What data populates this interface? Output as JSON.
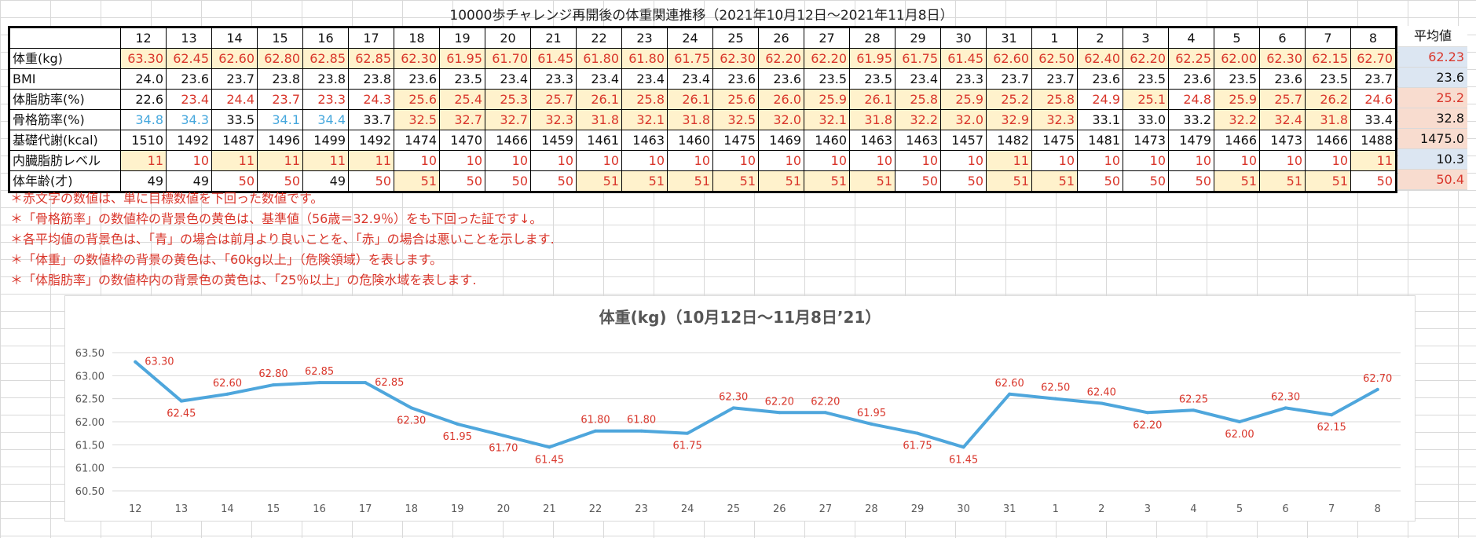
{
  "sheet": {
    "title": "10000歩チャレンジ再開後の体重関連推移（2021年10月12日～2021年11月8日）",
    "avg_header": "平均値",
    "days": [
      "12",
      "13",
      "14",
      "15",
      "16",
      "17",
      "18",
      "19",
      "20",
      "21",
      "22",
      "23",
      "24",
      "25",
      "26",
      "27",
      "28",
      "29",
      "30",
      "31",
      "1",
      "2",
      "3",
      "4",
      "5",
      "6",
      "7",
      "8"
    ],
    "colors": {
      "red_text": "#d9362b",
      "blue_text": "#45a7dd",
      "yellow_bg": "#fff2cc",
      "avg_blue_bg": "#dce6f2",
      "avg_red_bg": "#f8dccf",
      "line": "#4ea6dc"
    },
    "rows": [
      {
        "label": "体重(kg)",
        "values": [
          "63.30",
          "62.45",
          "62.60",
          "62.80",
          "62.85",
          "62.85",
          "62.30",
          "61.95",
          "61.70",
          "61.45",
          "61.80",
          "61.80",
          "61.75",
          "62.30",
          "62.20",
          "62.20",
          "61.95",
          "61.75",
          "61.45",
          "62.60",
          "62.50",
          "62.40",
          "62.20",
          "62.25",
          "62.00",
          "62.30",
          "62.15",
          "62.70"
        ],
        "text": [
          "r",
          "r",
          "r",
          "r",
          "r",
          "r",
          "r",
          "r",
          "r",
          "r",
          "r",
          "r",
          "r",
          "r",
          "r",
          "r",
          "r",
          "r",
          "r",
          "r",
          "r",
          "r",
          "r",
          "r",
          "r",
          "r",
          "r",
          "r"
        ],
        "bg": [
          "y",
          "y",
          "y",
          "y",
          "y",
          "y",
          "y",
          "y",
          "y",
          "y",
          "y",
          "y",
          "y",
          "y",
          "y",
          "y",
          "y",
          "y",
          "y",
          "y",
          "y",
          "y",
          "y",
          "y",
          "y",
          "y",
          "y",
          "y"
        ],
        "avg": "62.23",
        "avg_text": "r",
        "avg_bg": "b"
      },
      {
        "label": "BMI",
        "values": [
          "24.0",
          "23.6",
          "23.7",
          "23.8",
          "23.8",
          "23.8",
          "23.6",
          "23.5",
          "23.4",
          "23.3",
          "23.4",
          "23.4",
          "23.4",
          "23.6",
          "23.6",
          "23.5",
          "23.5",
          "23.4",
          "23.3",
          "23.7",
          "23.7",
          "23.6",
          "23.5",
          "23.6",
          "23.5",
          "23.6",
          "23.5",
          "23.7"
        ],
        "text": [
          "k",
          "k",
          "k",
          "k",
          "k",
          "k",
          "k",
          "k",
          "k",
          "k",
          "k",
          "k",
          "k",
          "k",
          "k",
          "k",
          "k",
          "k",
          "k",
          "k",
          "k",
          "k",
          "k",
          "k",
          "k",
          "k",
          "k",
          "k"
        ],
        "bg": [
          "w",
          "w",
          "w",
          "w",
          "w",
          "w",
          "w",
          "w",
          "w",
          "w",
          "w",
          "w",
          "w",
          "w",
          "w",
          "w",
          "w",
          "w",
          "w",
          "w",
          "w",
          "w",
          "w",
          "w",
          "w",
          "w",
          "w",
          "w"
        ],
        "avg": "23.6",
        "avg_text": "k",
        "avg_bg": "b"
      },
      {
        "label": "体脂肪率(%)",
        "values": [
          "22.6",
          "23.4",
          "24.4",
          "23.7",
          "23.3",
          "24.3",
          "25.6",
          "25.4",
          "25.3",
          "25.7",
          "26.1",
          "25.8",
          "26.1",
          "25.6",
          "26.0",
          "25.9",
          "26.1",
          "25.8",
          "25.9",
          "25.2",
          "25.8",
          "24.9",
          "25.1",
          "24.8",
          "25.9",
          "25.7",
          "26.2",
          "24.6"
        ],
        "text": [
          "k",
          "r",
          "r",
          "r",
          "r",
          "r",
          "r",
          "r",
          "r",
          "r",
          "r",
          "r",
          "r",
          "r",
          "r",
          "r",
          "r",
          "r",
          "r",
          "r",
          "r",
          "r",
          "r",
          "r",
          "r",
          "r",
          "r",
          "r"
        ],
        "bg": [
          "w",
          "w",
          "w",
          "w",
          "w",
          "w",
          "y",
          "y",
          "y",
          "y",
          "y",
          "y",
          "y",
          "y",
          "y",
          "y",
          "y",
          "y",
          "y",
          "y",
          "y",
          "w",
          "y",
          "w",
          "y",
          "y",
          "y",
          "w"
        ],
        "avg": "25.2",
        "avg_text": "r",
        "avg_bg": "p"
      },
      {
        "label": "骨格筋率(%)",
        "values": [
          "34.8",
          "34.3",
          "33.5",
          "34.1",
          "34.4",
          "33.7",
          "32.5",
          "32.7",
          "32.7",
          "32.3",
          "31.8",
          "32.1",
          "31.8",
          "32.5",
          "32.0",
          "32.1",
          "31.8",
          "32.2",
          "32.0",
          "32.9",
          "32.3",
          "33.1",
          "33.0",
          "33.2",
          "32.2",
          "32.4",
          "31.8",
          "33.4"
        ],
        "text": [
          "l",
          "l",
          "k",
          "l",
          "l",
          "k",
          "r",
          "r",
          "r",
          "r",
          "r",
          "r",
          "r",
          "r",
          "r",
          "r",
          "r",
          "r",
          "r",
          "r",
          "r",
          "k",
          "k",
          "k",
          "r",
          "r",
          "r",
          "k"
        ],
        "bg": [
          "w",
          "w",
          "w",
          "w",
          "w",
          "w",
          "y",
          "y",
          "y",
          "y",
          "y",
          "y",
          "y",
          "y",
          "y",
          "y",
          "y",
          "y",
          "y",
          "y",
          "y",
          "w",
          "w",
          "w",
          "y",
          "y",
          "y",
          "w"
        ],
        "avg": "32.8",
        "avg_text": "k",
        "avg_bg": "p"
      },
      {
        "label": "基礎代謝(kcal)",
        "values": [
          "1510",
          "1492",
          "1487",
          "1496",
          "1499",
          "1492",
          "1474",
          "1470",
          "1466",
          "1459",
          "1461",
          "1463",
          "1460",
          "1475",
          "1469",
          "1460",
          "1463",
          "1463",
          "1457",
          "1482",
          "1475",
          "1481",
          "1473",
          "1479",
          "1466",
          "1473",
          "1466",
          "1488"
        ],
        "text": [
          "k",
          "k",
          "k",
          "k",
          "k",
          "k",
          "k",
          "k",
          "k",
          "k",
          "k",
          "k",
          "k",
          "k",
          "k",
          "k",
          "k",
          "k",
          "k",
          "k",
          "k",
          "k",
          "k",
          "k",
          "k",
          "k",
          "k",
          "k"
        ],
        "bg": [
          "w",
          "w",
          "w",
          "w",
          "w",
          "w",
          "w",
          "w",
          "w",
          "w",
          "w",
          "w",
          "w",
          "w",
          "w",
          "w",
          "w",
          "w",
          "w",
          "w",
          "w",
          "w",
          "w",
          "w",
          "w",
          "w",
          "w",
          "w"
        ],
        "avg": "1475.0",
        "avg_text": "k",
        "avg_bg": "p"
      },
      {
        "label": "内臓脂肪レベル",
        "values": [
          "11",
          "10",
          "11",
          "11",
          "11",
          "11",
          "10",
          "10",
          "10",
          "10",
          "10",
          "10",
          "10",
          "10",
          "10",
          "10",
          "10",
          "10",
          "10",
          "11",
          "10",
          "10",
          "10",
          "10",
          "10",
          "10",
          "10",
          "11"
        ],
        "text": [
          "r",
          "r",
          "r",
          "r",
          "r",
          "r",
          "r",
          "r",
          "r",
          "r",
          "r",
          "r",
          "r",
          "r",
          "r",
          "r",
          "r",
          "r",
          "r",
          "r",
          "r",
          "r",
          "r",
          "r",
          "r",
          "r",
          "r",
          "r"
        ],
        "bg": [
          "y",
          "w",
          "y",
          "y",
          "y",
          "y",
          "w",
          "w",
          "w",
          "w",
          "w",
          "w",
          "w",
          "w",
          "w",
          "w",
          "w",
          "w",
          "w",
          "y",
          "w",
          "w",
          "w",
          "w",
          "w",
          "w",
          "w",
          "y"
        ],
        "avg": "10.3",
        "avg_text": "k",
        "avg_bg": "b"
      },
      {
        "label": "体年齢(才)",
        "values": [
          "49",
          "49",
          "50",
          "50",
          "49",
          "50",
          "51",
          "50",
          "50",
          "50",
          "51",
          "51",
          "51",
          "51",
          "51",
          "51",
          "51",
          "50",
          "50",
          "51",
          "51",
          "50",
          "50",
          "50",
          "51",
          "51",
          "51",
          "50"
        ],
        "text": [
          "k",
          "k",
          "r",
          "r",
          "k",
          "r",
          "r",
          "r",
          "r",
          "r",
          "r",
          "r",
          "r",
          "r",
          "r",
          "r",
          "r",
          "r",
          "r",
          "r",
          "r",
          "r",
          "r",
          "r",
          "r",
          "r",
          "r",
          "r"
        ],
        "bg": [
          "w",
          "w",
          "w",
          "w",
          "w",
          "w",
          "y",
          "w",
          "w",
          "w",
          "y",
          "y",
          "y",
          "y",
          "y",
          "y",
          "y",
          "w",
          "w",
          "y",
          "y",
          "w",
          "w",
          "w",
          "y",
          "y",
          "y",
          "w"
        ],
        "avg": "50.4",
        "avg_text": "r",
        "avg_bg": "p"
      }
    ]
  },
  "notes": [
    "＊赤文字の数値は、単に目標数値を下回った数値です。",
    "＊「骨格筋率」の数値枠の背景色の黄色は、基準値（56歳＝32.9％）をも下回った証です↓。",
    "＊各平均値の背景色は、「青」の場合は前月より良いことを、「赤」の場合は悪いことを示します.",
    "＊「体重」の数値枠の背景の黄色は、「60kg以上」（危険領域）を表します。",
    "＊「体脂肪率」の数値枠内の背景色の黄色は、「25％以上」の危険水域を表します."
  ],
  "chart_data": {
    "type": "line",
    "title": "体重(kg)（10月12日～11月8日’21）",
    "categories": [
      "12",
      "13",
      "14",
      "15",
      "16",
      "17",
      "18",
      "19",
      "20",
      "21",
      "22",
      "23",
      "24",
      "25",
      "26",
      "27",
      "28",
      "29",
      "30",
      "31",
      "1",
      "2",
      "3",
      "4",
      "5",
      "6",
      "7",
      "8"
    ],
    "series": [
      {
        "values": [
          63.3,
          62.45,
          62.6,
          62.8,
          62.85,
          62.85,
          62.3,
          61.95,
          61.7,
          61.45,
          61.8,
          61.8,
          61.75,
          62.3,
          62.2,
          62.2,
          61.95,
          61.75,
          61.45,
          62.6,
          62.5,
          62.4,
          62.2,
          62.25,
          62.0,
          62.3,
          62.15,
          62.7
        ],
        "labels": [
          "63.30",
          "62.45",
          "62.60",
          "62.80",
          "62.85",
          "62.85",
          "62.30",
          "61.95",
          "61.70",
          "61.45",
          "61.80",
          "61.80",
          "61.75",
          "62.30",
          "62.20",
          "62.20",
          "61.95",
          "61.75",
          "61.45",
          "62.60",
          "62.50",
          "62.40",
          "62.20",
          "62.25",
          "62.00",
          "62.30",
          "62.15",
          "62.70"
        ],
        "label_pos": [
          "r",
          "b",
          "a",
          "a",
          "a",
          "r",
          "b",
          "b",
          "b",
          "b",
          "a",
          "a",
          "b",
          "a",
          "a",
          "a",
          "a",
          "b",
          "b",
          "a",
          "a",
          "a",
          "b",
          "a",
          "b",
          "a",
          "b",
          "a"
        ]
      }
    ],
    "yticks": [
      "60.50",
      "61.00",
      "61.50",
      "62.00",
      "62.50",
      "63.00",
      "63.50"
    ],
    "ylim": [
      60.5,
      63.5
    ],
    "xlabel": "",
    "ylabel": "",
    "grid": true,
    "legend": "none"
  }
}
